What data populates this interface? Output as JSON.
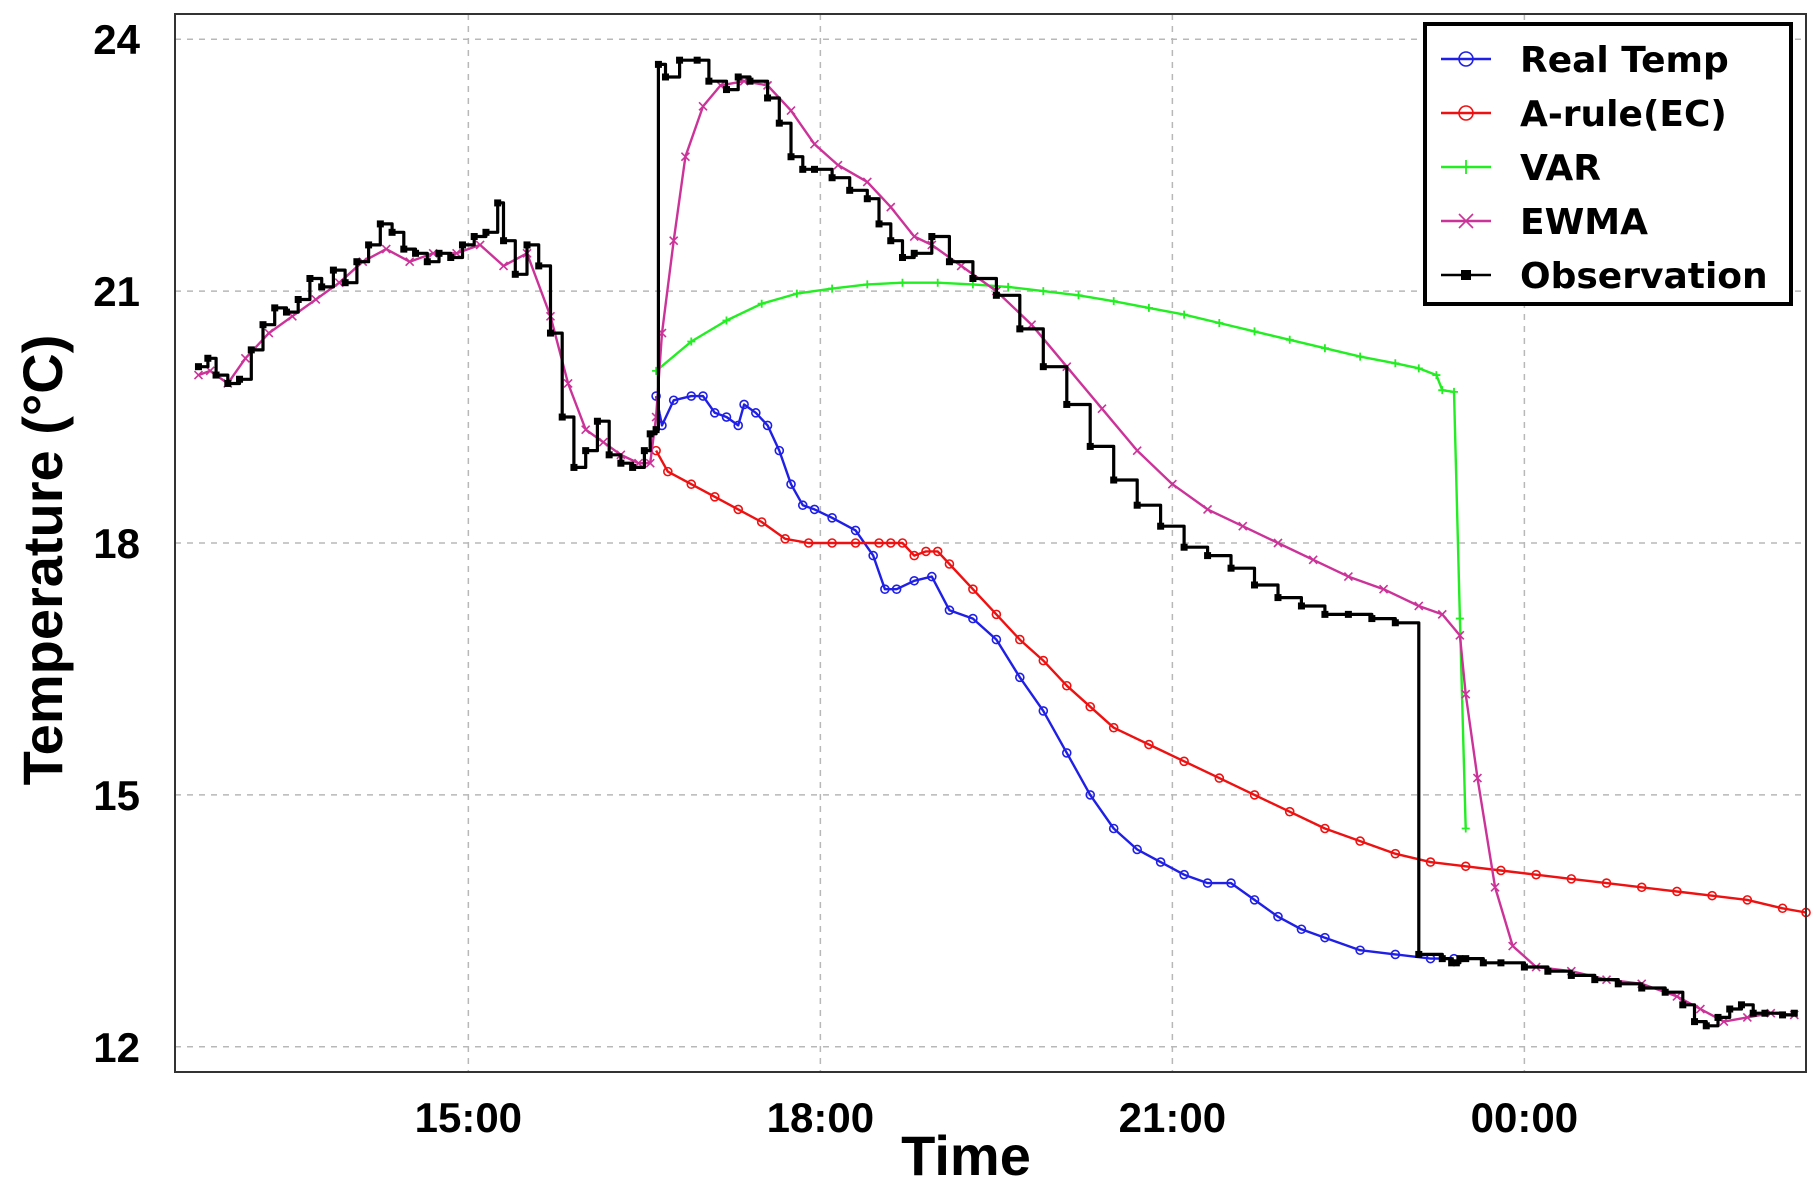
{
  "chart_data": {
    "type": "line",
    "title": "",
    "xlabel": "Time",
    "ylabel": "Temperature (°C)",
    "x_tick_labels": [
      "15:00",
      "18:00",
      "21:00",
      "00:00"
    ],
    "x_ticks_hours": [
      15,
      18,
      21,
      24
    ],
    "xlim_hours": [
      12.5,
      26.4
    ],
    "y_ticks": [
      12,
      15,
      18,
      21,
      24
    ],
    "ylim": [
      11.7,
      24.3
    ],
    "grid": true,
    "legend_position": "top-right",
    "series": [
      {
        "name": "Real Temp",
        "color": "#1f1fe6",
        "marker": "circle",
        "x": [
          16.6,
          16.65,
          16.75,
          16.9,
          17.0,
          17.1,
          17.2,
          17.3,
          17.35,
          17.45,
          17.55,
          17.65,
          17.75,
          17.85,
          17.95,
          18.1,
          18.3,
          18.45,
          18.55,
          18.65,
          18.8,
          18.95,
          19.1,
          19.3,
          19.5,
          19.7,
          19.9,
          20.1,
          20.3,
          20.5,
          20.7,
          20.9,
          21.1,
          21.3,
          21.5,
          21.7,
          21.9,
          22.1,
          22.3,
          22.6,
          22.9,
          23.2,
          23.4
        ],
        "y": [
          19.75,
          19.4,
          19.7,
          19.75,
          19.75,
          19.55,
          19.5,
          19.4,
          19.65,
          19.55,
          19.4,
          19.1,
          18.7,
          18.45,
          18.4,
          18.3,
          18.15,
          17.85,
          17.45,
          17.45,
          17.55,
          17.6,
          17.2,
          17.1,
          16.85,
          16.4,
          16.0,
          15.5,
          15.0,
          14.6,
          14.35,
          14.2,
          14.05,
          13.95,
          13.95,
          13.75,
          13.55,
          13.4,
          13.3,
          13.15,
          13.1,
          13.05,
          13.05
        ]
      },
      {
        "name": "A-rule(EC)",
        "color": "#ee1111",
        "marker": "circle",
        "x": [
          16.6,
          16.7,
          16.9,
          17.1,
          17.3,
          17.5,
          17.7,
          17.9,
          18.1,
          18.3,
          18.5,
          18.6,
          18.7,
          18.8,
          18.9,
          19.0,
          19.1,
          19.3,
          19.5,
          19.7,
          19.9,
          20.1,
          20.3,
          20.5,
          20.8,
          21.1,
          21.4,
          21.7,
          22.0,
          22.3,
          22.6,
          22.9,
          23.2,
          23.5,
          23.8,
          24.1,
          24.4,
          24.7,
          25.0,
          25.3,
          25.6,
          25.9,
          26.2,
          26.4
        ],
        "y": [
          19.1,
          18.85,
          18.7,
          18.55,
          18.4,
          18.25,
          18.05,
          18.0,
          18.0,
          18.0,
          18.0,
          18.0,
          18.0,
          17.85,
          17.9,
          17.9,
          17.75,
          17.45,
          17.15,
          16.85,
          16.6,
          16.3,
          16.05,
          15.8,
          15.6,
          15.4,
          15.2,
          15.0,
          14.8,
          14.6,
          14.45,
          14.3,
          14.2,
          14.15,
          14.1,
          14.05,
          14.0,
          13.95,
          13.9,
          13.85,
          13.8,
          13.75,
          13.65,
          13.6
        ]
      },
      {
        "name": "VAR",
        "color": "#22ee22",
        "marker": "plus",
        "x": [
          16.6,
          16.9,
          17.2,
          17.5,
          17.8,
          18.1,
          18.4,
          18.7,
          19.0,
          19.3,
          19.6,
          19.9,
          20.2,
          20.5,
          20.8,
          21.1,
          21.4,
          21.7,
          22.0,
          22.3,
          22.6,
          22.9,
          23.1,
          23.25,
          23.3,
          23.4,
          23.45,
          23.5
        ],
        "y": [
          20.05,
          20.4,
          20.65,
          20.85,
          20.97,
          21.03,
          21.08,
          21.1,
          21.1,
          21.08,
          21.05,
          21.0,
          20.95,
          20.88,
          20.8,
          20.72,
          20.62,
          20.52,
          20.42,
          20.32,
          20.22,
          20.14,
          20.08,
          20.0,
          19.82,
          19.8,
          17.1,
          14.6
        ]
      },
      {
        "name": "EWMA",
        "color": "#cc3399",
        "marker": "x",
        "x": [
          12.7,
          12.8,
          12.95,
          13.1,
          13.3,
          13.5,
          13.7,
          13.9,
          14.1,
          14.3,
          14.5,
          14.7,
          14.9,
          15.1,
          15.3,
          15.5,
          15.7,
          15.85,
          16.0,
          16.15,
          16.3,
          16.45,
          16.55,
          16.6,
          16.65,
          16.75,
          16.85,
          17.0,
          17.15,
          17.35,
          17.55,
          17.75,
          17.95,
          18.15,
          18.4,
          18.6,
          18.8,
          18.95,
          19.2,
          19.5,
          19.8,
          20.1,
          20.4,
          20.7,
          21.0,
          21.3,
          21.6,
          21.9,
          22.2,
          22.5,
          22.8,
          23.1,
          23.3,
          23.45,
          23.5,
          23.6,
          23.75,
          23.9,
          24.1,
          24.4,
          24.7,
          25.0,
          25.3,
          25.5,
          25.7,
          25.9,
          26.1,
          26.3
        ],
        "y": [
          20.0,
          20.05,
          19.9,
          20.2,
          20.5,
          20.7,
          20.9,
          21.1,
          21.35,
          21.5,
          21.35,
          21.45,
          21.45,
          21.55,
          21.3,
          21.45,
          20.7,
          19.9,
          19.35,
          19.2,
          19.05,
          18.95,
          18.95,
          19.5,
          20.5,
          21.6,
          22.6,
          23.2,
          23.45,
          23.5,
          23.45,
          23.15,
          22.75,
          22.5,
          22.3,
          22.0,
          21.65,
          21.55,
          21.3,
          21.0,
          20.6,
          20.1,
          19.6,
          19.1,
          18.7,
          18.4,
          18.2,
          18.0,
          17.8,
          17.6,
          17.45,
          17.25,
          17.15,
          16.9,
          16.2,
          15.2,
          13.9,
          13.2,
          12.95,
          12.9,
          12.8,
          12.75,
          12.6,
          12.45,
          12.3,
          12.35,
          12.4,
          12.38
        ]
      },
      {
        "name": "Observation",
        "color": "#000000",
        "marker": "square",
        "x": [
          12.7,
          12.78,
          12.85,
          12.95,
          13.05,
          13.15,
          13.25,
          13.35,
          13.45,
          13.55,
          13.65,
          13.75,
          13.85,
          13.95,
          14.05,
          14.15,
          14.25,
          14.35,
          14.45,
          14.55,
          14.65,
          14.75,
          14.85,
          14.95,
          15.05,
          15.15,
          15.25,
          15.3,
          15.4,
          15.5,
          15.6,
          15.7,
          15.8,
          15.9,
          16.0,
          16.1,
          16.2,
          16.3,
          16.4,
          16.5,
          16.55,
          16.6,
          16.62,
          16.68,
          16.8,
          16.95,
          17.05,
          17.2,
          17.3,
          17.4,
          17.55,
          17.65,
          17.75,
          17.85,
          17.95,
          18.1,
          18.25,
          18.4,
          18.5,
          18.6,
          18.7,
          18.8,
          18.95,
          19.1,
          19.3,
          19.5,
          19.7,
          19.9,
          20.1,
          20.3,
          20.5,
          20.7,
          20.9,
          21.1,
          21.3,
          21.5,
          21.7,
          21.9,
          22.1,
          22.3,
          22.5,
          22.7,
          22.9,
          23.1,
          23.3,
          23.38,
          23.42,
          23.45,
          23.5,
          23.65,
          23.8,
          24.0,
          24.2,
          24.4,
          24.6,
          24.8,
          25.0,
          25.2,
          25.35,
          25.45,
          25.55,
          25.65,
          25.75,
          25.85,
          25.95,
          26.05,
          26.2,
          26.3
        ],
        "y": [
          20.1,
          20.2,
          20.0,
          19.9,
          19.95,
          20.3,
          20.6,
          20.8,
          20.75,
          20.9,
          21.15,
          21.05,
          21.25,
          21.1,
          21.35,
          21.55,
          21.8,
          21.7,
          21.5,
          21.45,
          21.35,
          21.45,
          21.4,
          21.55,
          21.65,
          21.7,
          22.05,
          21.6,
          21.2,
          21.55,
          21.3,
          20.5,
          19.5,
          18.9,
          19.1,
          19.45,
          19.05,
          18.95,
          18.9,
          19.1,
          19.3,
          19.35,
          23.7,
          23.55,
          23.75,
          23.75,
          23.5,
          23.4,
          23.55,
          23.5,
          23.3,
          23.0,
          22.6,
          22.45,
          22.45,
          22.35,
          22.2,
          22.1,
          21.8,
          21.6,
          21.4,
          21.45,
          21.65,
          21.35,
          21.15,
          20.95,
          20.55,
          20.1,
          19.65,
          19.15,
          18.75,
          18.45,
          18.2,
          17.95,
          17.85,
          17.7,
          17.5,
          17.35,
          17.25,
          17.15,
          17.15,
          17.1,
          17.05,
          13.1,
          13.05,
          13.0,
          13.0,
          13.05,
          13.05,
          13.0,
          13.0,
          12.95,
          12.9,
          12.85,
          12.8,
          12.75,
          12.7,
          12.65,
          12.5,
          12.3,
          12.25,
          12.35,
          12.45,
          12.5,
          12.4,
          12.4,
          12.38,
          12.4
        ]
      }
    ]
  }
}
